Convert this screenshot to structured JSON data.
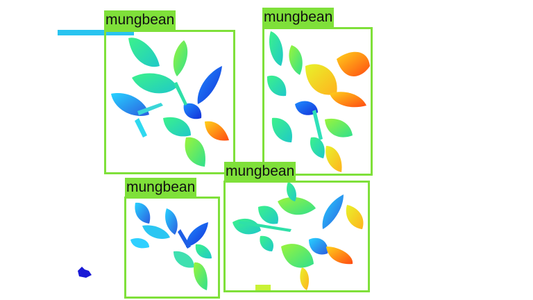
{
  "detections": [
    {
      "label": "mungbean"
    },
    {
      "label": "mungbean"
    },
    {
      "label": "mungbean"
    },
    {
      "label": "mungbean"
    }
  ],
  "colors": {
    "box": "#7fe03a",
    "background": "#ffffff",
    "stray_line": "#29c4f0",
    "stray_blob": "#1a1ad6"
  },
  "icons": {
    "plant_rendering": "depth-colored-mungbean-plant"
  }
}
